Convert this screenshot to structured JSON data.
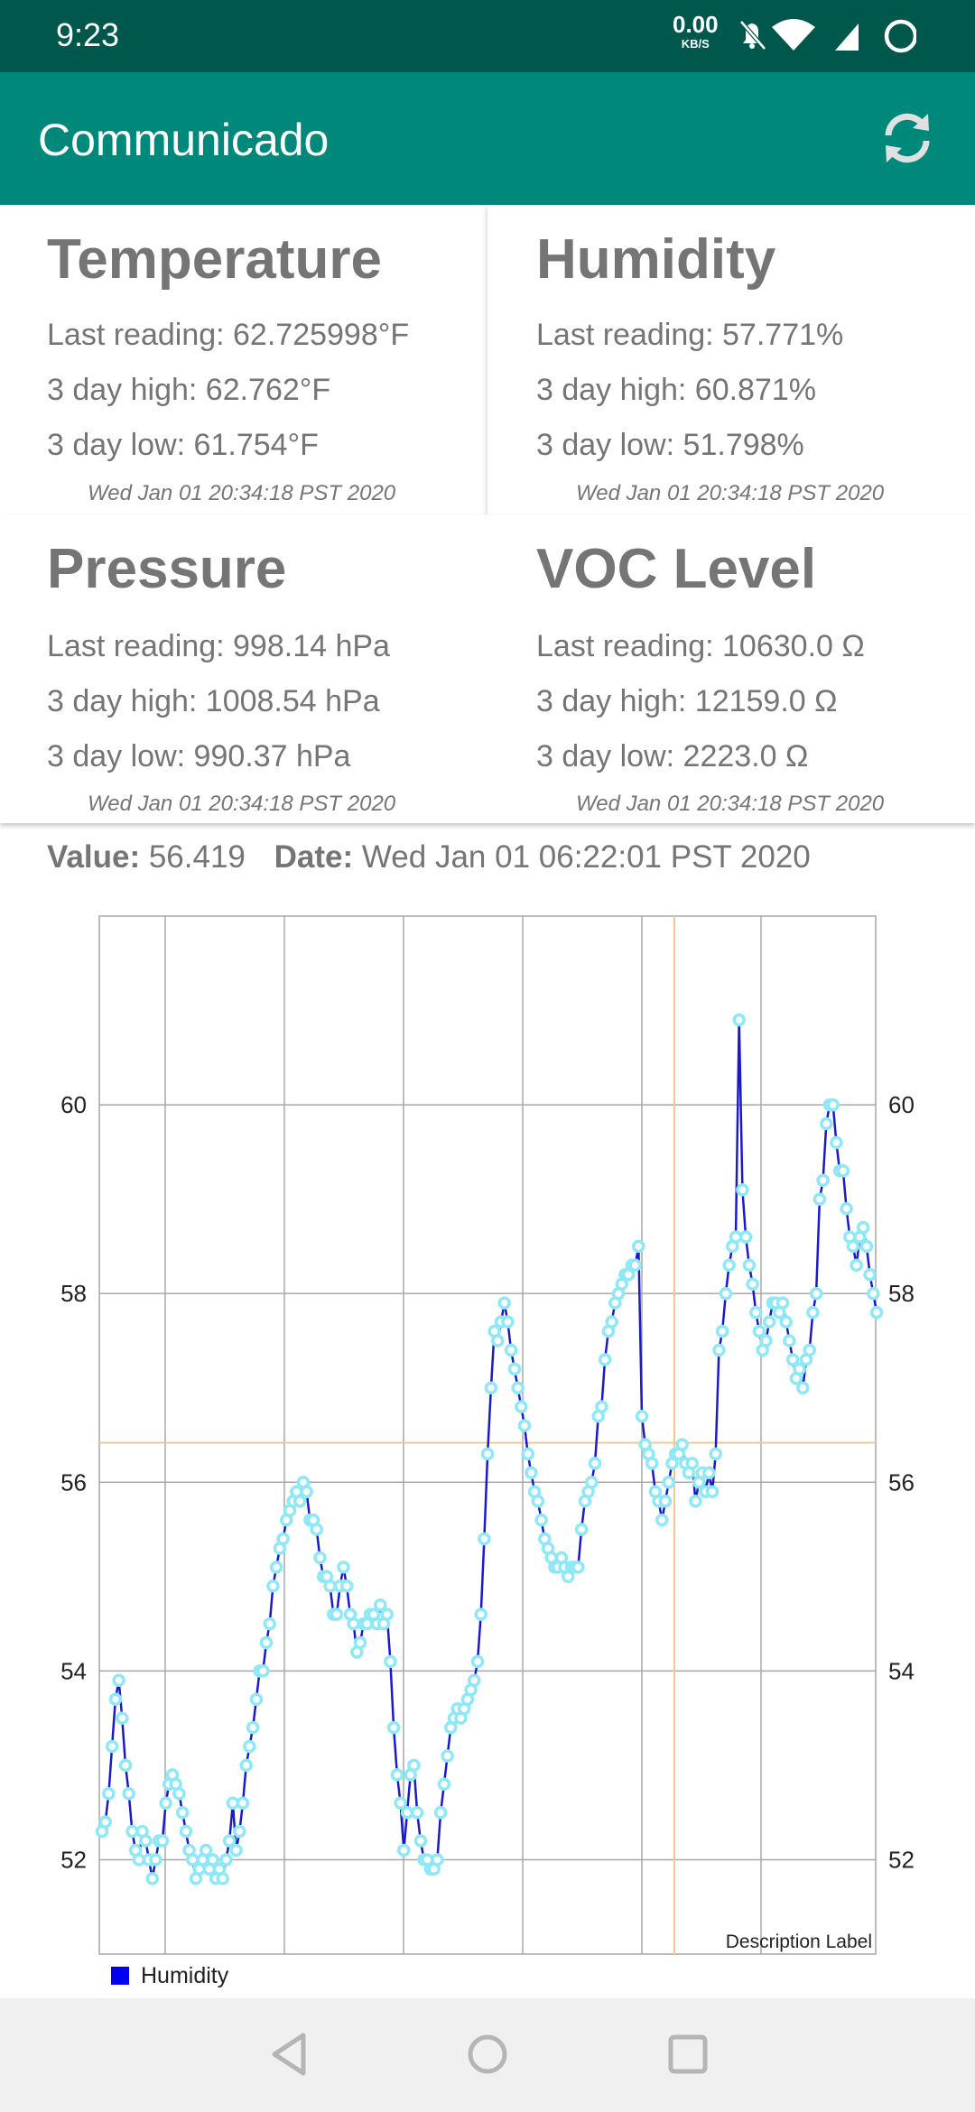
{
  "status": {
    "time": "9:23",
    "net_speed": "0.00",
    "net_unit": "KB/S"
  },
  "app": {
    "title": "Communicado"
  },
  "cards": [
    {
      "title": "Temperature",
      "last": "Last reading: 62.725998°F",
      "high": "3 day high: 62.762°F",
      "low": "3 day low: 61.754°F",
      "timestamp": "Wed Jan 01 20:34:18 PST 2020"
    },
    {
      "title": "Humidity",
      "last": "Last reading: 57.771%",
      "high": "3 day high: 60.871%",
      "low": "3 day low: 51.798%",
      "timestamp": "Wed Jan 01 20:34:18 PST 2020"
    },
    {
      "title": "Pressure",
      "last": "Last reading: 998.14 hPa",
      "high": "3 day high: 1008.54 hPa",
      "low": "3 day low: 990.37 hPa",
      "timestamp": "Wed Jan 01 20:34:18 PST 2020"
    },
    {
      "title": "VOC Level",
      "last": "Last reading: 10630.0 Ω",
      "high": "3 day high: 12159.0 Ω",
      "low": "3 day low: 2223.0 Ω",
      "timestamp": "Wed Jan 01 20:34:18 PST 2020"
    }
  ],
  "selection": {
    "value_label": "Value:",
    "value": "56.419",
    "date_label": "Date:",
    "date": "Wed Jan 01 06:22:01 PST 2020"
  },
  "chart_data": {
    "type": "line",
    "description": "Description Label",
    "ylim": [
      51,
      62
    ],
    "yticks": [
      52,
      54,
      56,
      58,
      60
    ],
    "ytick_labels": [
      "52",
      "54",
      "56",
      "58",
      "60"
    ],
    "grid": true,
    "legend_position": "bottom-left",
    "highlight_value": 56.419,
    "series": [
      {
        "name": "Humidity",
        "color": "#1a1acc",
        "marker_color": "#8ee8f5",
        "values": [
          52.3,
          52.4,
          52.7,
          53.2,
          53.7,
          53.9,
          53.5,
          53.0,
          52.7,
          52.3,
          52.1,
          52.0,
          52.3,
          52.2,
          52.0,
          51.8,
          52.0,
          52.2,
          52.2,
          52.6,
          52.8,
          52.9,
          52.8,
          52.7,
          52.5,
          52.3,
          52.1,
          52.0,
          51.8,
          51.9,
          52.0,
          52.1,
          51.9,
          52.0,
          51.8,
          51.9,
          51.8,
          52.0,
          52.2,
          52.6,
          52.1,
          52.3,
          52.6,
          53.0,
          53.2,
          53.4,
          53.7,
          54.0,
          54.0,
          54.3,
          54.5,
          54.9,
          55.1,
          55.3,
          55.4,
          55.6,
          55.7,
          55.8,
          55.9,
          55.8,
          56.0,
          55.9,
          55.6,
          55.6,
          55.5,
          55.2,
          55.0,
          55.0,
          54.9,
          54.6,
          54.6,
          54.9,
          55.1,
          54.9,
          54.6,
          54.5,
          54.2,
          54.3,
          54.5,
          54.5,
          54.6,
          54.6,
          54.5,
          54.7,
          54.5,
          54.6,
          54.1,
          53.4,
          52.9,
          52.6,
          52.1,
          52.5,
          52.9,
          53.0,
          52.5,
          52.2,
          52.0,
          52.0,
          51.9,
          51.9,
          52.0,
          52.5,
          52.8,
          53.1,
          53.4,
          53.5,
          53.6,
          53.5,
          53.6,
          53.7,
          53.8,
          53.9,
          54.1,
          54.6,
          55.4,
          56.3,
          57.0,
          57.6,
          57.5,
          57.7,
          57.9,
          57.7,
          57.4,
          57.2,
          57.0,
          56.8,
          56.6,
          56.3,
          56.1,
          55.9,
          55.8,
          55.6,
          55.4,
          55.3,
          55.2,
          55.1,
          55.1,
          55.2,
          55.1,
          55.0,
          55.1,
          55.1,
          55.1,
          55.5,
          55.8,
          55.9,
          56.0,
          56.2,
          56.7,
          56.8,
          57.3,
          57.6,
          57.7,
          57.9,
          58.0,
          58.1,
          58.2,
          58.2,
          58.3,
          58.3,
          58.5,
          56.7,
          56.4,
          56.3,
          56.2,
          55.9,
          55.8,
          55.6,
          55.8,
          56.0,
          56.2,
          56.3,
          56.3,
          56.4,
          56.2,
          56.1,
          56.2,
          55.8,
          56.0,
          56.1,
          55.9,
          56.1,
          55.9,
          56.3,
          57.4,
          57.6,
          58.0,
          58.3,
          58.5,
          58.6,
          60.9,
          59.1,
          58.6,
          58.3,
          58.1,
          57.8,
          57.6,
          57.4,
          57.5,
          57.7,
          57.9,
          57.9,
          57.8,
          57.9,
          57.7,
          57.5,
          57.3,
          57.1,
          57.2,
          57.0,
          57.3,
          57.4,
          57.8,
          58.0,
          59.0,
          59.2,
          59.8,
          60.0,
          60.0,
          59.6,
          59.3,
          59.3,
          58.9,
          58.6,
          58.5,
          58.3,
          58.6,
          58.7,
          58.5,
          58.2,
          58.0,
          57.8
        ]
      }
    ]
  },
  "nav": {
    "back": "back-button",
    "home": "home-button",
    "recents": "recents-button"
  }
}
